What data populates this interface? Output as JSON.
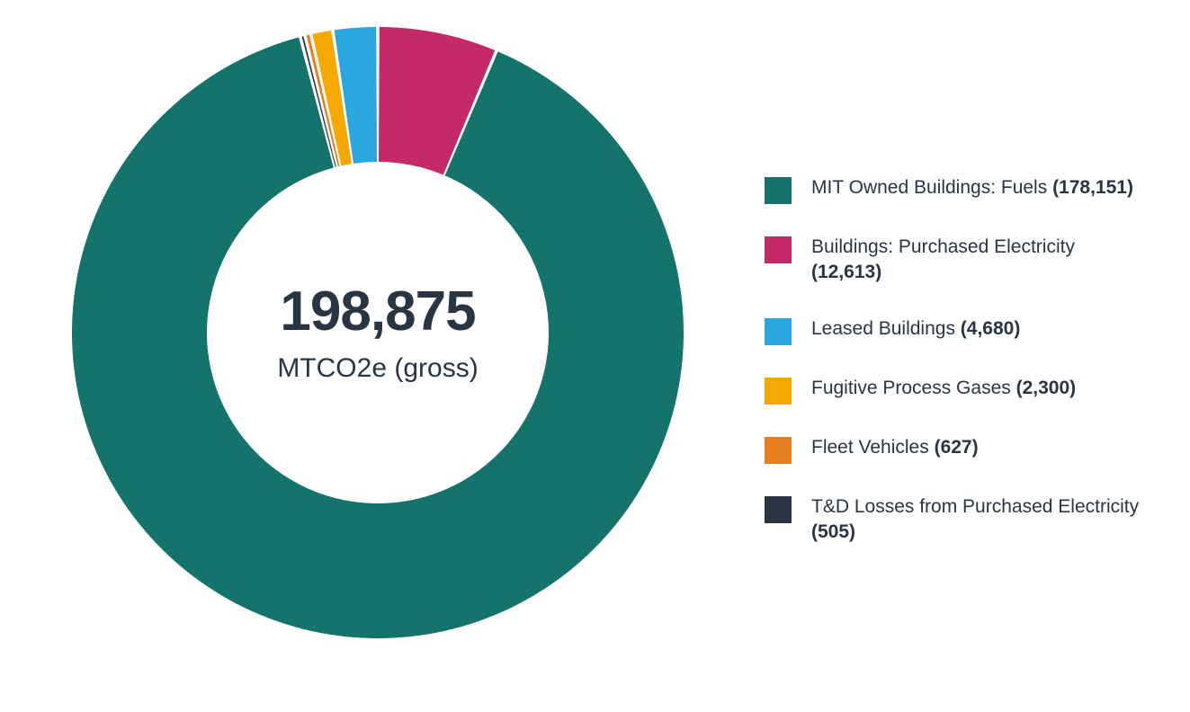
{
  "chart": {
    "type": "donut",
    "center_value": "198,875",
    "center_unit": "MTCO2e (gross)",
    "center_value_color": "#2a3544",
    "center_value_fontsize": 62,
    "center_unit_fontsize": 30,
    "background_color": "#ffffff",
    "outer_radius": 340,
    "inner_radius": 190,
    "start_angle_deg": -90,
    "slice_gap_deg": 0.6,
    "slices": [
      {
        "label_prefix": "MIT Owned Buildings: Fuels ",
        "value_str": "(178,151)",
        "value": 178151,
        "color": "#14736a"
      },
      {
        "label_prefix": "Buildings: Purchased Electricity ",
        "value_str": "(12,613)",
        "value": 12613,
        "color": "#c4296a"
      },
      {
        "label_prefix": "Leased Buildings ",
        "value_str": "(4,680)",
        "value": 4680,
        "color": "#2ba7df"
      },
      {
        "label_prefix": "Fugitive Process Gases ",
        "value_str": "(2,300)",
        "value": 2300,
        "color": "#f5a800"
      },
      {
        "label_prefix": "Fleet Vehicles ",
        "value_str": "(627)",
        "value": 627,
        "color": "#e87d1e"
      },
      {
        "label_prefix": "T&D Losses from Purchased Electricity ",
        "value_str": "(505)",
        "value": 505,
        "color": "#2a3544"
      }
    ],
    "legend_swatch_size": 30,
    "legend_fontsize": 21,
    "legend_text_color": "#2a3544"
  }
}
